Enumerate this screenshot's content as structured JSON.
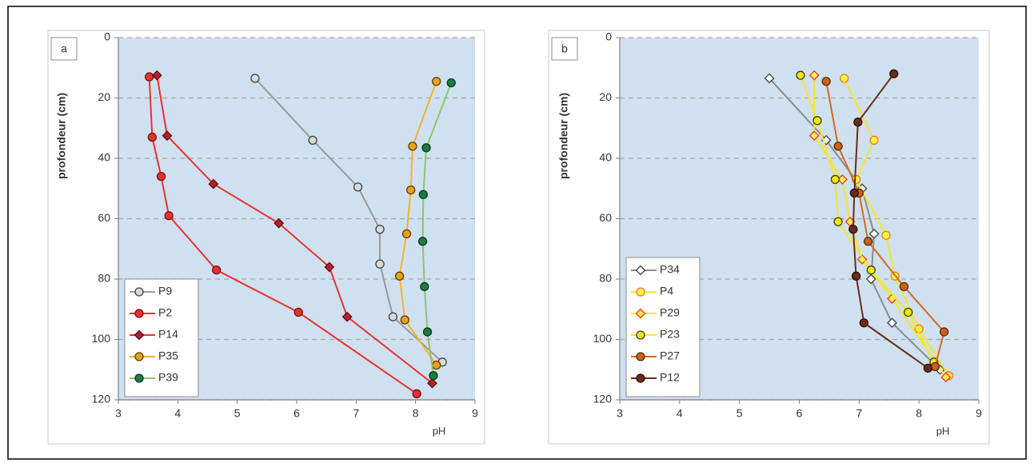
{
  "chart_data": [
    {
      "type": "line",
      "panel_label": "a",
      "xlabel": "pH",
      "ylabel": "profondeur (cm)",
      "xlim": [
        3,
        9
      ],
      "ylim": [
        0,
        120
      ],
      "y_inverted": true,
      "xticks": [
        3,
        4,
        5,
        6,
        7,
        8,
        9
      ],
      "yticks": [
        0,
        20,
        40,
        60,
        80,
        100,
        120
      ],
      "grid": true,
      "legend": "lower left",
      "series": [
        {
          "name": "P9",
          "color": "#9a9a9a",
          "marker_color": "#d9d9d9",
          "marker_edge": "#404040",
          "marker": "circle",
          "x": [
            5.3,
            6.27,
            7.03,
            7.4,
            7.4,
            7.62,
            8.45
          ],
          "values": [
            13.5,
            34,
            49.5,
            63.5,
            75,
            92.5,
            107.5
          ]
        },
        {
          "name": "P2",
          "color": "#e8322d",
          "marker_color": "#e8322d",
          "marker_edge": "#7a1010",
          "marker": "circle",
          "x": [
            3.52,
            3.57,
            3.72,
            3.85,
            4.65,
            6.03,
            8.02
          ],
          "values": [
            13,
            33,
            46,
            59,
            77,
            91,
            118
          ]
        },
        {
          "name": "P14",
          "color": "#e8322d",
          "marker_color": "#b3222b",
          "marker_edge": "#5a0a10",
          "marker": "diamond",
          "x": [
            3.65,
            3.82,
            4.6,
            5.7,
            6.55,
            6.85,
            8.28
          ],
          "values": [
            12.5,
            32.5,
            48.5,
            61.5,
            76,
            92.5,
            114.5
          ]
        },
        {
          "name": "P35",
          "color": "#f6b128",
          "marker_color": "#e9a11a",
          "marker_edge": "#5a4000",
          "marker": "circle",
          "x": [
            8.35,
            7.95,
            7.92,
            7.85,
            7.73,
            7.82,
            8.35
          ],
          "values": [
            14.5,
            36,
            50.5,
            65,
            79,
            93.5,
            108.5
          ]
        },
        {
          "name": "P39",
          "color": "#8fc36c",
          "marker_color": "#1e7a45",
          "marker_edge": "#0a3a1e",
          "marker": "circle",
          "x": [
            8.6,
            8.18,
            8.13,
            8.12,
            8.15,
            8.2,
            8.3
          ],
          "values": [
            15,
            36.5,
            52,
            67.5,
            82.5,
            97.5,
            112
          ]
        }
      ]
    },
    {
      "type": "line",
      "panel_label": "b",
      "xlabel": "pH",
      "ylabel": "profondeur (cm)",
      "xlim": [
        3,
        9
      ],
      "ylim": [
        0,
        120
      ],
      "y_inverted": true,
      "xticks": [
        3,
        4,
        5,
        6,
        7,
        8,
        9
      ],
      "yticks": [
        0,
        20,
        40,
        60,
        80,
        100,
        120
      ],
      "grid": true,
      "legend": "lower left",
      "series": [
        {
          "name": "P34",
          "color": "#8c8c8c",
          "marker_color": "#ffffff",
          "marker_edge": "#404040",
          "marker": "diamond",
          "x": [
            5.5,
            6.45,
            7.05,
            7.25,
            7.2,
            7.55,
            8.35
          ],
          "values": [
            13.5,
            34,
            50,
            65,
            80,
            94.5,
            110
          ]
        },
        {
          "name": "P4",
          "color": "#f7e62a",
          "marker_color": "#fff34a",
          "marker_edge": "#f07a1a",
          "marker": "circle",
          "x": [
            6.75,
            7.25,
            6.95,
            7.45,
            7.6,
            8.0,
            8.5
          ],
          "values": [
            13.5,
            34,
            47,
            65.5,
            79,
            96.5,
            112
          ]
        },
        {
          "name": "P29",
          "color": "#f7e62a",
          "marker_color": "#fff34a",
          "marker_edge": "#e8322d",
          "marker": "diamond",
          "x": [
            6.25,
            6.25,
            6.72,
            6.85,
            7.05,
            7.55,
            8.45
          ],
          "values": [
            12.5,
            32.5,
            47,
            61,
            73.5,
            86.5,
            112.5
          ]
        },
        {
          "name": "P23",
          "color": "#f7e62a",
          "marker_color": "#f2e41c",
          "marker_edge": "#404000",
          "marker": "circle",
          "x": [
            6.02,
            6.3,
            6.6,
            6.65,
            7.2,
            7.82,
            8.25
          ],
          "values": [
            12.5,
            27.5,
            47,
            61,
            77,
            91,
            107.5
          ]
        },
        {
          "name": "P27",
          "color": "#d06a25",
          "marker_color": "#c8621e",
          "marker_edge": "#5a2a08",
          "marker": "circle",
          "x": [
            6.45,
            6.65,
            7.0,
            7.15,
            7.75,
            8.42,
            8.27
          ],
          "values": [
            14.5,
            36,
            51.5,
            67.5,
            82.5,
            97.5,
            109
          ]
        },
        {
          "name": "P12",
          "color": "#6b2c17",
          "marker_color": "#6b2c17",
          "marker_edge": "#2a0f05",
          "marker": "circle",
          "x": [
            7.58,
            6.98,
            6.92,
            6.9,
            6.95,
            7.08,
            8.15
          ],
          "values": [
            12,
            28,
            51.5,
            63.5,
            79,
            94.5,
            109.5
          ]
        }
      ]
    }
  ]
}
